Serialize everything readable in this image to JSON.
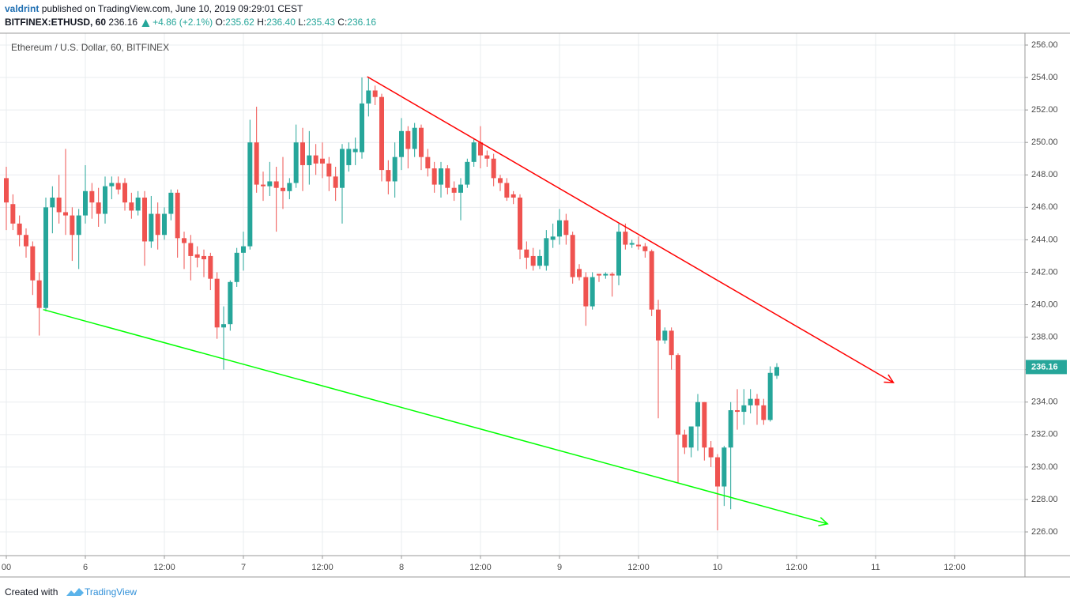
{
  "header": {
    "author": "valdrint",
    "published": "published on TradingView.com, June 10, 2019 09:29:01 CEST",
    "symbol": "BITFINEX:ETHUSD, 60",
    "last": "236.16",
    "change": "+4.86 (+2.1%)",
    "ohlc": [
      {
        "label": "O:",
        "value": "235.62"
      },
      {
        "label": "H:",
        "value": "236.40"
      },
      {
        "label": "L:",
        "value": "235.43"
      },
      {
        "label": "C:",
        "value": "236.16"
      }
    ]
  },
  "chart_data": {
    "type": "candlestick",
    "title": "Ethereum / U.S. Dollar, 60, BITFINEX",
    "up_color": "#26a69a",
    "down_color": "#ef5350",
    "grid": true,
    "x": [
      0,
      1,
      2,
      3,
      4,
      5,
      6,
      7,
      8,
      9,
      10,
      11,
      12,
      13,
      14,
      15,
      16,
      17,
      18,
      19,
      20,
      21,
      22,
      23,
      24,
      25,
      26,
      27,
      28,
      29,
      30,
      31,
      32,
      33,
      34,
      35,
      36,
      37,
      38,
      39,
      40,
      41,
      42,
      43,
      44,
      45,
      46,
      47,
      48,
      49,
      50,
      51,
      52,
      53,
      54,
      55,
      56,
      57,
      58,
      59,
      60,
      61,
      62,
      63,
      64,
      65,
      66,
      67,
      68,
      69,
      70,
      71,
      72,
      73,
      74,
      75,
      76,
      77,
      78,
      79,
      80,
      81,
      82,
      83,
      84,
      85,
      86,
      87,
      88,
      89,
      90,
      91,
      92,
      93,
      94,
      95,
      96,
      97,
      98,
      99,
      100,
      101,
      102,
      103,
      104,
      105,
      106,
      107,
      108,
      109,
      110,
      111,
      112,
      113,
      114,
      115,
      116,
      117
    ],
    "open": [
      247.8,
      246.2,
      245.0,
      244.3,
      243.6,
      241.5,
      239.8,
      246.0,
      246.6,
      245.7,
      245.5,
      244.3,
      245.5,
      247.0,
      246.3,
      245.6,
      247.3,
      247.5,
      247.5,
      246.3,
      245.8,
      246.6,
      243.9,
      245.6,
      244.3,
      245.6,
      246.9,
      244.1,
      243.8,
      243.1,
      243.0,
      243.0,
      241.6,
      238.6,
      238.8,
      241.4,
      243.2,
      243.6,
      250.0,
      247.4,
      247.3,
      247.6,
      247.2,
      247.0,
      247.5,
      250.0,
      248.6,
      249.2,
      249.0,
      248.7,
      247.9,
      247.2,
      248.6,
      249.4,
      249.4,
      252.4,
      253.2,
      252.8,
      248.3,
      247.6,
      249.1,
      250.7,
      249.6,
      250.9,
      249.1,
      248.4,
      247.4,
      248.4,
      247.2,
      246.9,
      247.4,
      248.8,
      250.0,
      249.2,
      249.0,
      247.8,
      247.5,
      246.8,
      246.6,
      243.4,
      243.0,
      242.4,
      242.4,
      244.0,
      244.2,
      245.2,
      244.3,
      242.2,
      241.7,
      239.9,
      241.9,
      241.8,
      241.9,
      241.8,
      244.5,
      243.7,
      243.7,
      243.6,
      243.3,
      239.7,
      237.8,
      238.4,
      236.9,
      232.0,
      231.2,
      232.5,
      234.0,
      231.2,
      230.6,
      228.8,
      231.2,
      233.5,
      233.4,
      233.8,
      234.2,
      233.8,
      232.9,
      235.62
    ],
    "high": [
      248.5,
      246.8,
      245.5,
      244.7,
      243.9,
      242.0,
      246.6,
      247.3,
      248.0,
      249.6,
      246.0,
      245.9,
      248.6,
      247.5,
      247.2,
      247.9,
      247.9,
      247.9,
      247.8,
      246.9,
      247.0,
      247.0,
      246.7,
      246.3,
      246.0,
      247.1,
      247.1,
      244.5,
      244.3,
      243.6,
      243.4,
      243.2,
      242.0,
      239.9,
      241.5,
      243.5,
      244.5,
      251.4,
      252.2,
      248.2,
      248.8,
      248.5,
      249.1,
      247.8,
      251.1,
      250.9,
      250.7,
      249.9,
      250.0,
      249.1,
      248.5,
      249.9,
      250.0,
      250.3,
      254.0,
      254.0,
      253.5,
      253.0,
      248.9,
      250.0,
      251.5,
      251.0,
      251.2,
      251.1,
      249.6,
      248.8,
      248.8,
      248.6,
      247.6,
      247.8,
      249.0,
      250.2,
      251.0,
      249.5,
      249.3,
      248.0,
      247.8,
      247.0,
      246.8,
      243.9,
      243.5,
      243.4,
      244.6,
      245.0,
      245.9,
      245.6,
      244.5,
      242.5,
      242.0,
      242.0,
      241.9,
      242.0,
      242.0,
      245.0,
      245.0,
      244.0,
      244.2,
      243.8,
      243.4,
      240.3,
      238.6,
      238.6,
      237.0,
      232.3,
      232.5,
      234.5,
      234.0,
      231.6,
      230.8,
      231.3,
      234.0,
      234.8,
      234.8,
      234.8,
      234.5,
      234.2,
      236.2,
      236.4
    ],
    "low": [
      244.6,
      244.6,
      243.6,
      242.9,
      240.6,
      238.1,
      239.6,
      244.4,
      245.0,
      244.3,
      242.7,
      242.2,
      245.0,
      245.3,
      244.8,
      245.0,
      246.5,
      246.8,
      245.8,
      245.3,
      245.5,
      242.4,
      243.5,
      243.4,
      244.0,
      245.2,
      242.9,
      242.2,
      241.5,
      242.3,
      241.7,
      240.9,
      237.9,
      236.0,
      238.4,
      241.1,
      242.1,
      243.4,
      246.9,
      246.4,
      246.7,
      244.5,
      245.9,
      246.5,
      247.2,
      247.0,
      247.4,
      248.0,
      247.8,
      247.0,
      246.4,
      245.0,
      248.2,
      248.6,
      249.0,
      251.6,
      252.3,
      247.6,
      246.8,
      246.6,
      248.3,
      248.4,
      249.1,
      248.3,
      247.9,
      246.9,
      246.6,
      246.8,
      246.4,
      245.2,
      247.2,
      248.5,
      248.4,
      248.5,
      247.3,
      247.0,
      246.4,
      246.2,
      242.8,
      242.2,
      242.1,
      242.2,
      242.1,
      243.5,
      243.7,
      243.7,
      241.3,
      241.5,
      238.7,
      239.7,
      241.4,
      241.6,
      240.5,
      241.2,
      243.4,
      243.5,
      243.4,
      242.9,
      239.3,
      233.0,
      237.6,
      236.0,
      229.0,
      230.8,
      230.6,
      231.0,
      230.4,
      230.0,
      226.1,
      227.6,
      227.4,
      232.3,
      232.6,
      233.3,
      232.6,
      232.6,
      232.8,
      235.43
    ],
    "close": [
      246.3,
      245.0,
      244.3,
      243.6,
      241.5,
      239.8,
      246.0,
      246.6,
      245.7,
      245.5,
      244.3,
      245.5,
      247.0,
      246.3,
      245.6,
      247.3,
      247.5,
      247.1,
      246.3,
      245.8,
      246.6,
      243.9,
      245.6,
      244.3,
      245.6,
      246.9,
      244.1,
      243.8,
      243.0,
      242.9,
      242.8,
      241.6,
      238.6,
      238.8,
      241.4,
      243.2,
      243.6,
      250.0,
      247.4,
      247.3,
      247.6,
      247.2,
      247.0,
      247.5,
      250.0,
      248.6,
      249.2,
      248.7,
      248.7,
      247.9,
      247.2,
      249.6,
      249.6,
      249.6,
      252.4,
      253.2,
      252.8,
      248.3,
      247.6,
      249.1,
      250.7,
      249.6,
      250.9,
      249.1,
      248.4,
      247.4,
      248.4,
      247.2,
      246.9,
      247.4,
      248.8,
      250.0,
      249.2,
      249.0,
      247.8,
      247.5,
      246.6,
      246.6,
      243.4,
      242.9,
      242.4,
      243.0,
      244.1,
      244.2,
      245.2,
      244.3,
      241.7,
      241.7,
      239.9,
      241.7,
      241.8,
      241.9,
      241.8,
      244.5,
      243.7,
      243.8,
      243.6,
      243.3,
      239.7,
      237.8,
      238.4,
      236.9,
      232.0,
      231.2,
      232.5,
      234.0,
      231.2,
      230.6,
      228.8,
      231.2,
      233.5,
      233.4,
      233.8,
      234.2,
      233.8,
      232.9,
      235.8,
      236.16
    ],
    "last_price": 236.16,
    "trend_lines": [
      {
        "color": "#ff0000",
        "x": [
          54.8,
          134.7
        ],
        "y": [
          254.05,
          235.2
        ]
      },
      {
        "color": "#00ff00",
        "x": [
          5.6,
          124.7
        ],
        "y": [
          239.7,
          226.5
        ]
      }
    ],
    "xlim": [
      -0.96,
      154.68
    ],
    "xticks": [
      {
        "value": 0,
        "label": "00"
      },
      {
        "value": 12,
        "label": "6"
      },
      {
        "value": 24,
        "label": "12:00"
      },
      {
        "value": 36,
        "label": "7"
      },
      {
        "value": 48,
        "label": "12:00"
      },
      {
        "value": 60,
        "label": "8"
      },
      {
        "value": 72,
        "label": "12:00"
      },
      {
        "value": 84,
        "label": "9"
      },
      {
        "value": 96,
        "label": "12:00"
      },
      {
        "value": 108,
        "label": "10"
      },
      {
        "value": 120,
        "label": "12:00"
      },
      {
        "value": 132,
        "label": "11"
      },
      {
        "value": 144,
        "label": "12:00"
      }
    ],
    "ylim": [
      224.54,
      256.73
    ],
    "yticks": [
      {
        "value": 226,
        "label": "226.00"
      },
      {
        "value": 228,
        "label": "228.00"
      },
      {
        "value": 230,
        "label": "230.00"
      },
      {
        "value": 232,
        "label": "232.00"
      },
      {
        "value": 234,
        "label": "234.00"
      },
      {
        "value": 236,
        "label": "236.00"
      },
      {
        "value": 238,
        "label": "238.00"
      },
      {
        "value": 240,
        "label": "240.00"
      },
      {
        "value": 242,
        "label": "242.00"
      },
      {
        "value": 244,
        "label": "244.00"
      },
      {
        "value": 246,
        "label": "246.00"
      },
      {
        "value": 248,
        "label": "248.00"
      },
      {
        "value": 250,
        "label": "250.00"
      },
      {
        "value": 252,
        "label": "252.00"
      },
      {
        "value": 254,
        "label": "254.00"
      },
      {
        "value": 256,
        "label": "256.00"
      }
    ]
  },
  "footer": {
    "prefix": "Created with",
    "brand": "TradingView"
  }
}
